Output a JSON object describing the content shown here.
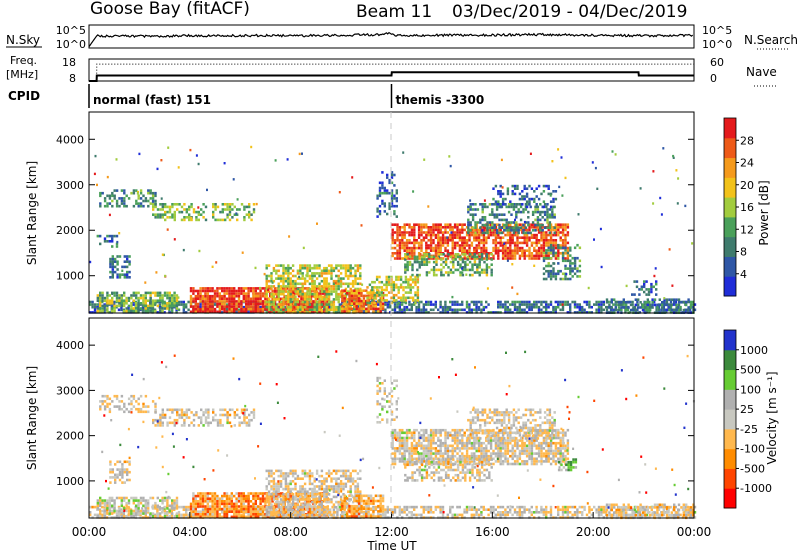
{
  "header": {
    "station": "Goose Bay (fitACF)",
    "beam": "Beam 11",
    "date_range": "03/Dec/2019 - 04/Dec/2019"
  },
  "colors": {
    "cpid_marker": "#000000",
    "terminator_line": "#c8c8c8",
    "power": [
      "#1f2dd8",
      "#2f57a6",
      "#3f7b6d",
      "#4aa05a",
      "#a2cc3e",
      "#f2c21a",
      "#f59a1c",
      "#ee5a18",
      "#e41a1c"
    ],
    "velocity": [
      "#ff0000",
      "#ff4500",
      "#ff8c00",
      "#ffb84d",
      "#c8c8c0",
      "#b0b0b0",
      "#66cc33",
      "#3c8a3c",
      "#2233cc"
    ]
  },
  "chart_data": [
    {
      "id": "n-sky-search",
      "type": "line",
      "left_label": "N.Sky",
      "right_label": "N.Search",
      "y_tick_labels": [
        "10^5",
        "10^0"
      ],
      "right_tick_labels": [
        "10^5",
        "10^0"
      ],
      "series": [
        {
          "name": "N.Sky",
          "x": [
            0,
            0.3,
            1,
            3,
            6,
            9,
            11.5,
            11.9,
            12.2,
            15,
            18,
            21,
            24
          ],
          "y": [
            0.3,
            2.6,
            2.6,
            2.6,
            2.7,
            2.7,
            2.9,
            3.3,
            2.7,
            2.8,
            2.9,
            2.7,
            2.7
          ]
        }
      ],
      "xlim": [
        0,
        24
      ],
      "ylim": [
        0,
        5
      ],
      "y_scale": "log"
    },
    {
      "id": "freq-nave",
      "type": "line",
      "left_label": "Freq.",
      "left_unit": "[MHz]",
      "right_label": "Nave",
      "y_tick_labels": [
        "18",
        "8"
      ],
      "right_tick_labels": [
        "60",
        "0"
      ],
      "series": [
        {
          "name": "Freq.",
          "x": [
            0,
            0.3,
            0.31,
            12,
            12.01,
            21.8,
            21.81,
            24
          ],
          "y": [
            8,
            8,
            10.5,
            10.5,
            12,
            12,
            10.5,
            10.5
          ]
        },
        {
          "name": "Nave",
          "x": [
            0,
            0.3,
            0.31,
            24
          ],
          "y": [
            0,
            0,
            46,
            46
          ]
        }
      ],
      "xlim": [
        0,
        24
      ],
      "ylim_left": [
        8,
        18
      ],
      "ylim_right": [
        0,
        60
      ]
    },
    {
      "id": "cpid",
      "type": "table",
      "label": "CPID",
      "segments": [
        {
          "start_hour": 0,
          "label": "normal (fast) 151"
        },
        {
          "start_hour": 12,
          "label": "themis -3300"
        }
      ]
    },
    {
      "id": "power",
      "type": "heatmap",
      "ylabel": "Slant Range [km]",
      "yticks": [
        "1000",
        "2000",
        "3000",
        "4000"
      ],
      "ylim": [
        180,
        4600
      ],
      "xlim": [
        0,
        24
      ],
      "colorbar_label": "Power [dB]",
      "colorbar_ticks": [
        "4",
        "8",
        "12",
        "16",
        "20",
        "24",
        "28"
      ],
      "colorbar_range": [
        0,
        30
      ],
      "regions": [
        {
          "t0": 0,
          "t1": 24,
          "r0": 200,
          "r1": 450,
          "level": 0.22,
          "density": 0.65
        },
        {
          "t0": 0.3,
          "t1": 3.5,
          "r0": 200,
          "r1": 650,
          "level": 0.45,
          "density": 0.7
        },
        {
          "t0": 0.8,
          "t1": 1.6,
          "r0": 950,
          "r1": 1450,
          "level": 0.25,
          "density": 0.55
        },
        {
          "t0": 0.3,
          "t1": 1.2,
          "r0": 1650,
          "r1": 1900,
          "level": 0.2,
          "density": 0.35
        },
        {
          "t0": 0.4,
          "t1": 2.6,
          "r0": 2500,
          "r1": 2900,
          "level": 0.3,
          "density": 0.45
        },
        {
          "t0": 2.5,
          "t1": 6.5,
          "r0": 2200,
          "r1": 2600,
          "level": 0.45,
          "density": 0.5
        },
        {
          "t0": 4,
          "t1": 9.5,
          "r0": 200,
          "r1": 750,
          "level": 0.9,
          "density": 0.85
        },
        {
          "t0": 7,
          "t1": 10.8,
          "r0": 200,
          "r1": 1250,
          "level": 0.55,
          "density": 0.65
        },
        {
          "t0": 10,
          "t1": 11.7,
          "r0": 200,
          "r1": 700,
          "level": 0.8,
          "density": 0.75
        },
        {
          "t0": 11,
          "t1": 13,
          "r0": 400,
          "r1": 1000,
          "level": 0.55,
          "density": 0.55
        },
        {
          "t0": 12,
          "t1": 19,
          "r0": 1350,
          "r1": 2150,
          "level": 0.85,
          "density": 0.75
        },
        {
          "t0": 12.5,
          "t1": 16,
          "r0": 1000,
          "r1": 1500,
          "level": 0.4,
          "density": 0.5
        },
        {
          "t0": 15,
          "t1": 18.5,
          "r0": 1950,
          "r1": 2600,
          "level": 0.3,
          "density": 0.5
        },
        {
          "t0": 16,
          "t1": 18.5,
          "r0": 2500,
          "r1": 3000,
          "level": 0.2,
          "density": 0.35
        },
        {
          "t0": 18,
          "t1": 19.5,
          "r0": 900,
          "r1": 1700,
          "level": 0.3,
          "density": 0.45
        },
        {
          "t0": 11.4,
          "t1": 12.2,
          "r0": 2300,
          "r1": 3300,
          "level": 0.2,
          "density": 0.3
        },
        {
          "t0": 20.5,
          "t1": 24,
          "r0": 200,
          "r1": 500,
          "level": 0.25,
          "density": 0.55
        },
        {
          "t0": 21.5,
          "t1": 22.5,
          "r0": 600,
          "r1": 900,
          "level": 0.2,
          "density": 0.4
        }
      ]
    },
    {
      "id": "velocity",
      "type": "heatmap",
      "ylabel": "Slant Range [km]",
      "yticks": [
        "1000",
        "2000",
        "3000",
        "4000"
      ],
      "ylim": [
        180,
        4600
      ],
      "xlim": [
        0,
        24
      ],
      "xlabel": "Time UT",
      "x_tick_labels": [
        "00:00",
        "04:00",
        "08:00",
        "12:00",
        "16:00",
        "20:00",
        "00:00"
      ],
      "colorbar_label": "Velocity [m s⁻¹]",
      "colorbar_ticks": [
        "-1000",
        "-500",
        "-100",
        "-25",
        "25",
        "100",
        "500",
        "1000"
      ],
      "regions": [
        {
          "t0": 0,
          "t1": 24,
          "r0": 200,
          "r1": 450,
          "level": 0.5,
          "density": 0.6
        },
        {
          "t0": 0.3,
          "t1": 3.5,
          "r0": 200,
          "r1": 650,
          "level": 0.55,
          "density": 0.6
        },
        {
          "t0": 0.8,
          "t1": 1.6,
          "r0": 950,
          "r1": 1450,
          "level": 0.5,
          "density": 0.5
        },
        {
          "t0": 0.4,
          "t1": 2.6,
          "r0": 2500,
          "r1": 2900,
          "level": 0.5,
          "density": 0.45
        },
        {
          "t0": 2.5,
          "t1": 6.5,
          "r0": 2200,
          "r1": 2600,
          "level": 0.5,
          "density": 0.5
        },
        {
          "t0": 4,
          "t1": 9.5,
          "r0": 200,
          "r1": 750,
          "level": 0.3,
          "density": 0.8
        },
        {
          "t0": 7,
          "t1": 10.8,
          "r0": 200,
          "r1": 1250,
          "level": 0.5,
          "density": 0.6
        },
        {
          "t0": 10,
          "t1": 11.7,
          "r0": 200,
          "r1": 700,
          "level": 0.35,
          "density": 0.7
        },
        {
          "t0": 12,
          "t1": 19,
          "r0": 1350,
          "r1": 2150,
          "level": 0.5,
          "density": 0.75
        },
        {
          "t0": 12.5,
          "t1": 16,
          "r0": 1000,
          "r1": 1500,
          "level": 0.5,
          "density": 0.5
        },
        {
          "t0": 15,
          "t1": 18.5,
          "r0": 1950,
          "r1": 2600,
          "level": 0.5,
          "density": 0.5
        },
        {
          "t0": 18.6,
          "t1": 19.3,
          "r0": 1250,
          "r1": 1500,
          "level": 0.7,
          "density": 0.6
        },
        {
          "t0": 11.4,
          "t1": 12.2,
          "r0": 2300,
          "r1": 3300,
          "level": 0.55,
          "density": 0.3
        },
        {
          "t0": 20.5,
          "t1": 24,
          "r0": 200,
          "r1": 500,
          "level": 0.45,
          "density": 0.55
        }
      ]
    }
  ]
}
